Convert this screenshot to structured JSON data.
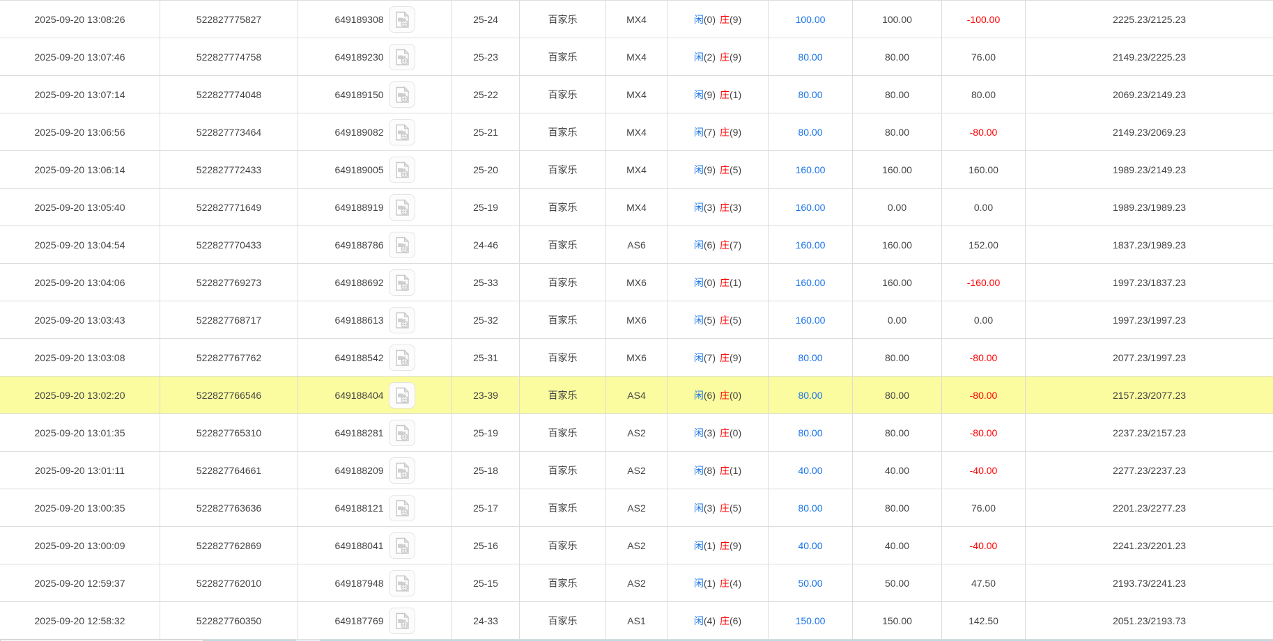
{
  "colors": {
    "accent_blue": "#1874e8",
    "negative_red": "#ff0000",
    "highlight_yellow": "#fbfba0",
    "row_border": "#dcdcdc",
    "footer_blue": "#c3dae3",
    "footer_pale_blue": "#e6f1f5"
  },
  "table": {
    "highlighted_row_index": 10,
    "rows": [
      {
        "time": "2025-09-20 13:08:26",
        "order_no": "522827775827",
        "game_no": "649189308",
        "round": "25-24",
        "game": "百家乐",
        "table_code": "MX4",
        "player_label": "闲",
        "player_score": "(0)",
        "banker_label": "庄",
        "banker_score": "(9)",
        "bet": "100.00",
        "valid_bet": "100.00",
        "win_loss": "-100.00",
        "balance": "2225.23/2125.23"
      },
      {
        "time": "2025-09-20 13:07:46",
        "order_no": "522827774758",
        "game_no": "649189230",
        "round": "25-23",
        "game": "百家乐",
        "table_code": "MX4",
        "player_label": "闲",
        "player_score": "(2)",
        "banker_label": "庄",
        "banker_score": "(9)",
        "bet": "80.00",
        "valid_bet": "80.00",
        "win_loss": "76.00",
        "balance": "2149.23/2225.23"
      },
      {
        "time": "2025-09-20 13:07:14",
        "order_no": "522827774048",
        "game_no": "649189150",
        "round": "25-22",
        "game": "百家乐",
        "table_code": "MX4",
        "player_label": "闲",
        "player_score": "(9)",
        "banker_label": "庄",
        "banker_score": "(1)",
        "bet": "80.00",
        "valid_bet": "80.00",
        "win_loss": "80.00",
        "balance": "2069.23/2149.23"
      },
      {
        "time": "2025-09-20 13:06:56",
        "order_no": "522827773464",
        "game_no": "649189082",
        "round": "25-21",
        "game": "百家乐",
        "table_code": "MX4",
        "player_label": "闲",
        "player_score": "(7)",
        "banker_label": "庄",
        "banker_score": "(9)",
        "bet": "80.00",
        "valid_bet": "80.00",
        "win_loss": "-80.00",
        "balance": "2149.23/2069.23"
      },
      {
        "time": "2025-09-20 13:06:14",
        "order_no": "522827772433",
        "game_no": "649189005",
        "round": "25-20",
        "game": "百家乐",
        "table_code": "MX4",
        "player_label": "闲",
        "player_score": "(9)",
        "banker_label": "庄",
        "banker_score": "(5)",
        "bet": "160.00",
        "valid_bet": "160.00",
        "win_loss": "160.00",
        "balance": "1989.23/2149.23"
      },
      {
        "time": "2025-09-20 13:05:40",
        "order_no": "522827771649",
        "game_no": "649188919",
        "round": "25-19",
        "game": "百家乐",
        "table_code": "MX4",
        "player_label": "闲",
        "player_score": "(3)",
        "banker_label": "庄",
        "banker_score": "(3)",
        "bet": "160.00",
        "valid_bet": "0.00",
        "win_loss": "0.00",
        "balance": "1989.23/1989.23"
      },
      {
        "time": "2025-09-20 13:04:54",
        "order_no": "522827770433",
        "game_no": "649188786",
        "round": "24-46",
        "game": "百家乐",
        "table_code": "AS6",
        "player_label": "闲",
        "player_score": "(6)",
        "banker_label": "庄",
        "banker_score": "(7)",
        "bet": "160.00",
        "valid_bet": "160.00",
        "win_loss": "152.00",
        "balance": "1837.23/1989.23"
      },
      {
        "time": "2025-09-20 13:04:06",
        "order_no": "522827769273",
        "game_no": "649188692",
        "round": "25-33",
        "game": "百家乐",
        "table_code": "MX6",
        "player_label": "闲",
        "player_score": "(0)",
        "banker_label": "庄",
        "banker_score": "(1)",
        "bet": "160.00",
        "valid_bet": "160.00",
        "win_loss": "-160.00",
        "balance": "1997.23/1837.23"
      },
      {
        "time": "2025-09-20 13:03:43",
        "order_no": "522827768717",
        "game_no": "649188613",
        "round": "25-32",
        "game": "百家乐",
        "table_code": "MX6",
        "player_label": "闲",
        "player_score": "(5)",
        "banker_label": "庄",
        "banker_score": "(5)",
        "bet": "160.00",
        "valid_bet": "0.00",
        "win_loss": "0.00",
        "balance": "1997.23/1997.23"
      },
      {
        "time": "2025-09-20 13:03:08",
        "order_no": "522827767762",
        "game_no": "649188542",
        "round": "25-31",
        "game": "百家乐",
        "table_code": "MX6",
        "player_label": "闲",
        "player_score": "(7)",
        "banker_label": "庄",
        "banker_score": "(9)",
        "bet": "80.00",
        "valid_bet": "80.00",
        "win_loss": "-80.00",
        "balance": "2077.23/1997.23"
      },
      {
        "time": "2025-09-20 13:02:20",
        "order_no": "522827766546",
        "game_no": "649188404",
        "round": "23-39",
        "game": "百家乐",
        "table_code": "AS4",
        "player_label": "闲",
        "player_score": "(6)",
        "banker_label": "庄",
        "banker_score": "(0)",
        "bet": "80.00",
        "valid_bet": "80.00",
        "win_loss": "-80.00",
        "balance": "2157.23/2077.23"
      },
      {
        "time": "2025-09-20 13:01:35",
        "order_no": "522827765310",
        "game_no": "649188281",
        "round": "25-19",
        "game": "百家乐",
        "table_code": "AS2",
        "player_label": "闲",
        "player_score": "(3)",
        "banker_label": "庄",
        "banker_score": "(0)",
        "bet": "80.00",
        "valid_bet": "80.00",
        "win_loss": "-80.00",
        "balance": "2237.23/2157.23"
      },
      {
        "time": "2025-09-20 13:01:11",
        "order_no": "522827764661",
        "game_no": "649188209",
        "round": "25-18",
        "game": "百家乐",
        "table_code": "AS2",
        "player_label": "闲",
        "player_score": "(8)",
        "banker_label": "庄",
        "banker_score": "(1)",
        "bet": "40.00",
        "valid_bet": "40.00",
        "win_loss": "-40.00",
        "balance": "2277.23/2237.23"
      },
      {
        "time": "2025-09-20 13:00:35",
        "order_no": "522827763636",
        "game_no": "649188121",
        "round": "25-17",
        "game": "百家乐",
        "table_code": "AS2",
        "player_label": "闲",
        "player_score": "(3)",
        "banker_label": "庄",
        "banker_score": "(5)",
        "bet": "80.00",
        "valid_bet": "80.00",
        "win_loss": "76.00",
        "balance": "2201.23/2277.23"
      },
      {
        "time": "2025-09-20 13:00:09",
        "order_no": "522827762869",
        "game_no": "649188041",
        "round": "25-16",
        "game": "百家乐",
        "table_code": "AS2",
        "player_label": "闲",
        "player_score": "(1)",
        "banker_label": "庄",
        "banker_score": "(9)",
        "bet": "40.00",
        "valid_bet": "40.00",
        "win_loss": "-40.00",
        "balance": "2241.23/2201.23"
      },
      {
        "time": "2025-09-20 12:59:37",
        "order_no": "522827762010",
        "game_no": "649187948",
        "round": "25-15",
        "game": "百家乐",
        "table_code": "AS2",
        "player_label": "闲",
        "player_score": "(1)",
        "banker_label": "庄",
        "banker_score": "(4)",
        "bet": "50.00",
        "valid_bet": "50.00",
        "win_loss": "47.50",
        "balance": "2193.73/2241.23"
      },
      {
        "time": "2025-09-20 12:58:32",
        "order_no": "522827760350",
        "game_no": "649187769",
        "round": "24-33",
        "game": "百家乐",
        "table_code": "AS1",
        "player_label": "闲",
        "player_score": "(4)",
        "banker_label": "庄",
        "banker_score": "(6)",
        "bet": "150.00",
        "valid_bet": "150.00",
        "win_loss": "142.50",
        "balance": "2051.23/2193.73"
      }
    ]
  }
}
